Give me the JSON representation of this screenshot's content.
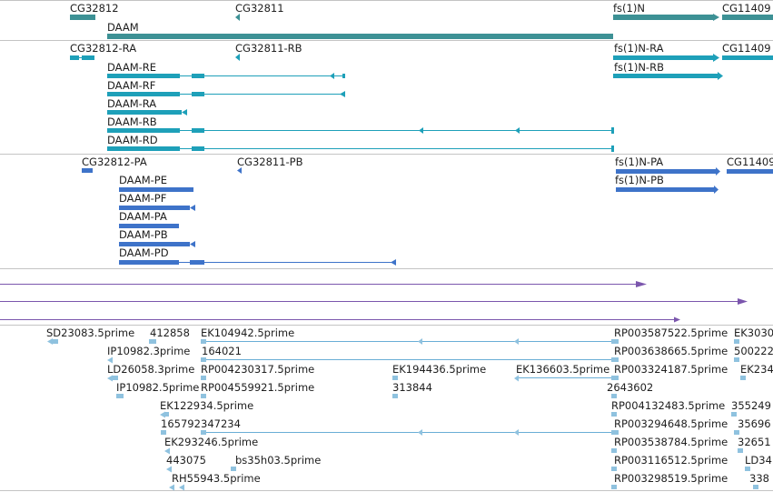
{
  "colors": {
    "gene": "#3d9195",
    "transcript": "#1ea0b9",
    "cds": "#3e73c9",
    "purple": "#7b56ad",
    "est": "#8fc2df",
    "est_line": "#6aaed6",
    "separator": "#c4c4c4"
  },
  "tracks": {
    "genes": {
      "labels": [
        "CG32812",
        "CG32811",
        "DAAM",
        "fs(1)N",
        "CG11409"
      ]
    },
    "transcripts": {
      "labels": [
        "CG32812-RA",
        "CG32811-RB",
        "DAAM-RE",
        "DAAM-RF",
        "DAAM-RA",
        "DAAM-RB",
        "DAAM-RD",
        "fs(1)N-RA",
        "fs(1)N-RB",
        "CG11409"
      ]
    },
    "proteins": {
      "labels": [
        "CG32812-PA",
        "CG32811-PB",
        "DAAM-PE",
        "DAAM-PF",
        "DAAM-PA",
        "DAAM-PB",
        "DAAM-PD",
        "fs(1)N-PA",
        "fs(1)N-PB",
        "CG11409"
      ]
    },
    "ests": {
      "labels": [
        "SD23083.5prime",
        "412858",
        "EK104942.5prime",
        "RP003587522.5prime",
        "EK3030",
        "IP10982.3prime",
        "164021",
        "RP003638665.5prime",
        "500222",
        "LD26058.3prime",
        "RP004230317.5prime",
        "EK194436.5prime",
        "EK136603.5prime",
        "RP003324187.5prime",
        "EK234",
        "IP10982.5prime",
        "RP004559921.5prime",
        "313844",
        "2643602",
        "EK122934.5prime",
        "RP004132483.5prime",
        "355249",
        "165792",
        "347234",
        "RP003294648.5prime",
        "35696",
        "EK293246.5prime",
        "RP003538784.5prime",
        "32651",
        "443075",
        "bs35h03.5prime",
        "RP003116512.5prime",
        "LD34",
        "RH55943.5prime",
        "RP003298519.5prime",
        "338"
      ]
    }
  }
}
